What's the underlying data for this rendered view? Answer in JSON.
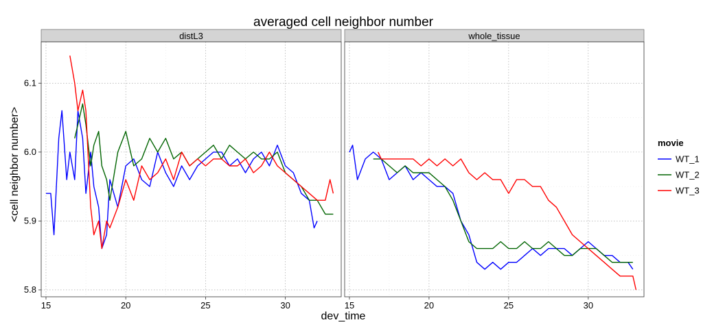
{
  "chart_data": {
    "type": "line",
    "title": "averaged cell neighbor number",
    "xlabel": "dev_time",
    "ylabel": "<cell neighbor number>",
    "xlim": [
      14.7,
      33.5
    ],
    "ylim": [
      5.79,
      6.16
    ],
    "xticks": [
      15,
      20,
      25,
      30
    ],
    "yticks": [
      5.8,
      5.9,
      6.0,
      6.1
    ],
    "grid": true,
    "legend": {
      "title": "movie",
      "position": "right"
    },
    "series_styles": [
      {
        "name": "WT_1",
        "color": "#0000ff"
      },
      {
        "name": "WT_2",
        "color": "#006400"
      },
      {
        "name": "WT_3",
        "color": "#ff0000"
      }
    ],
    "facets": [
      {
        "label": "distL3",
        "series": [
          {
            "name": "WT_1",
            "x": [
              15.0,
              15.3,
              15.5,
              15.8,
              16.0,
              16.3,
              16.5,
              16.8,
              17.0,
              17.3,
              17.5,
              17.8,
              18.0,
              18.3,
              18.5,
              18.8,
              19.0,
              19.5,
              20.0,
              20.5,
              21.0,
              21.5,
              22.0,
              22.5,
              23.0,
              23.5,
              24.0,
              24.5,
              25.0,
              25.5,
              26.0,
              26.5,
              27.0,
              27.5,
              28.0,
              28.5,
              29.0,
              29.5,
              30.0,
              30.5,
              31.0,
              31.5,
              31.8,
              32.0
            ],
            "y": [
              5.94,
              5.94,
              5.88,
              6.02,
              6.06,
              5.96,
              6.0,
              5.96,
              6.06,
              6.02,
              5.94,
              6.0,
              5.95,
              5.92,
              5.86,
              5.88,
              5.96,
              5.92,
              5.98,
              5.99,
              5.96,
              5.95,
              6.0,
              5.97,
              5.95,
              5.98,
              5.96,
              5.98,
              5.99,
              6.0,
              6.0,
              5.98,
              5.99,
              5.97,
              5.99,
              6.0,
              5.98,
              6.01,
              5.98,
              5.97,
              5.94,
              5.93,
              5.89,
              5.9
            ]
          },
          {
            "name": "WT_2",
            "x": [
              16.8,
              17.0,
              17.3,
              17.5,
              17.8,
              18.0,
              18.3,
              18.5,
              18.8,
              19.0,
              19.5,
              20.0,
              20.5,
              21.0,
              21.5,
              22.0,
              22.5,
              23.0,
              23.5,
              24.0,
              24.5,
              25.0,
              25.5,
              26.0,
              26.5,
              27.0,
              27.5,
              28.0,
              28.5,
              29.0,
              29.5,
              30.0,
              30.5,
              31.0,
              31.5,
              32.0,
              32.5,
              33.0
            ],
            "y": [
              6.02,
              6.04,
              6.07,
              6.04,
              5.98,
              6.01,
              6.03,
              5.98,
              5.96,
              5.93,
              6.0,
              6.03,
              5.98,
              5.99,
              6.02,
              6.0,
              6.02,
              5.99,
              6.0,
              5.98,
              5.99,
              6.0,
              6.01,
              5.99,
              6.01,
              6.0,
              5.99,
              6.0,
              5.99,
              5.99,
              6.0,
              5.97,
              5.96,
              5.95,
              5.93,
              5.93,
              5.91,
              5.91
            ]
          },
          {
            "name": "WT_3",
            "x": [
              16.5,
              16.8,
              17.0,
              17.3,
              17.5,
              17.8,
              18.0,
              18.3,
              18.5,
              18.8,
              19.0,
              19.5,
              20.0,
              20.5,
              21.0,
              21.5,
              22.0,
              22.5,
              23.0,
              23.5,
              24.0,
              24.5,
              25.0,
              25.5,
              26.0,
              26.5,
              27.0,
              27.5,
              28.0,
              28.5,
              29.0,
              29.5,
              30.0,
              30.5,
              31.0,
              31.5,
              32.0,
              32.5,
              32.8,
              33.0
            ],
            "y": [
              6.14,
              6.1,
              6.06,
              6.09,
              6.06,
              5.92,
              5.88,
              5.9,
              5.86,
              5.9,
              5.89,
              5.92,
              5.96,
              5.93,
              5.98,
              5.96,
              5.97,
              5.99,
              5.96,
              6.0,
              5.98,
              5.99,
              5.98,
              5.99,
              5.99,
              5.98,
              5.98,
              5.99,
              5.97,
              5.98,
              6.0,
              5.98,
              5.97,
              5.96,
              5.95,
              5.94,
              5.93,
              5.93,
              5.96,
              5.94
            ]
          }
        ]
      },
      {
        "label": "whole_tissue",
        "series": [
          {
            "name": "WT_1",
            "x": [
              15.0,
              15.2,
              15.5,
              16.0,
              16.5,
              17.0,
              17.5,
              18.0,
              18.5,
              19.0,
              19.5,
              20.0,
              20.5,
              21.0,
              21.5,
              22.0,
              22.5,
              23.0,
              23.5,
              24.0,
              24.5,
              25.0,
              25.5,
              26.0,
              26.5,
              27.0,
              27.5,
              28.0,
              28.5,
              29.0,
              29.5,
              30.0,
              30.5,
              31.0,
              31.5,
              32.0,
              32.5,
              32.8
            ],
            "y": [
              6.0,
              6.01,
              5.96,
              5.99,
              6.0,
              5.99,
              5.96,
              5.97,
              5.98,
              5.96,
              5.97,
              5.96,
              5.95,
              5.95,
              5.94,
              5.9,
              5.88,
              5.84,
              5.83,
              5.84,
              5.83,
              5.84,
              5.84,
              5.85,
              5.86,
              5.85,
              5.86,
              5.86,
              5.86,
              5.85,
              5.86,
              5.87,
              5.86,
              5.85,
              5.85,
              5.84,
              5.84,
              5.83
            ]
          },
          {
            "name": "WT_2",
            "x": [
              16.5,
              17.0,
              17.5,
              18.0,
              18.5,
              19.0,
              19.5,
              20.0,
              20.5,
              21.0,
              21.5,
              22.0,
              22.5,
              23.0,
              23.5,
              24.0,
              24.5,
              25.0,
              25.5,
              26.0,
              26.5,
              27.0,
              27.5,
              28.0,
              28.5,
              29.0,
              29.5,
              30.0,
              30.5,
              31.0,
              31.5,
              32.0,
              32.5,
              32.8
            ],
            "y": [
              5.99,
              5.99,
              5.98,
              5.97,
              5.98,
              5.97,
              5.97,
              5.97,
              5.96,
              5.95,
              5.93,
              5.9,
              5.87,
              5.86,
              5.86,
              5.86,
              5.87,
              5.86,
              5.86,
              5.87,
              5.86,
              5.86,
              5.87,
              5.86,
              5.85,
              5.85,
              5.86,
              5.86,
              5.86,
              5.85,
              5.84,
              5.84,
              5.84,
              5.84
            ]
          },
          {
            "name": "WT_3",
            "x": [
              16.8,
              17.0,
              17.5,
              18.0,
              18.5,
              19.0,
              19.5,
              20.0,
              20.5,
              21.0,
              21.5,
              22.0,
              22.5,
              23.0,
              23.5,
              24.0,
              24.5,
              25.0,
              25.5,
              26.0,
              26.5,
              27.0,
              27.5,
              28.0,
              28.5,
              29.0,
              29.5,
              30.0,
              30.5,
              31.0,
              31.5,
              32.0,
              32.5,
              32.8,
              33.0
            ],
            "y": [
              6.0,
              5.99,
              5.99,
              5.99,
              5.99,
              5.99,
              5.98,
              5.99,
              5.98,
              5.99,
              5.98,
              5.99,
              5.97,
              5.96,
              5.97,
              5.96,
              5.96,
              5.94,
              5.96,
              5.96,
              5.95,
              5.95,
              5.93,
              5.92,
              5.9,
              5.88,
              5.87,
              5.86,
              5.85,
              5.84,
              5.83,
              5.82,
              5.82,
              5.82,
              5.8
            ]
          }
        ]
      }
    ]
  }
}
